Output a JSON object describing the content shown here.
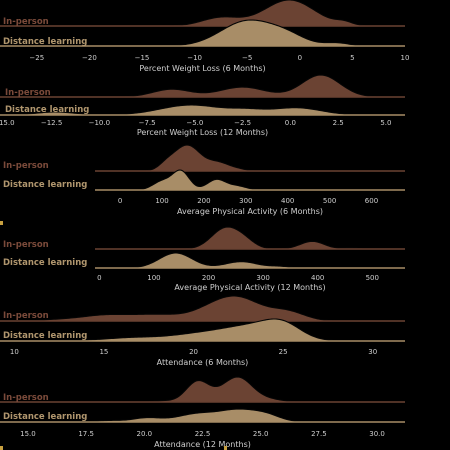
{
  "colors": {
    "background": "#000000",
    "in_person": "#6b4333",
    "in_person_label": "#7a4a3a",
    "distance": "#a88d67",
    "distance_label": "#b0966e",
    "outline": "#050505",
    "text": "#cfcfcf",
    "accent": "#c8a040"
  },
  "chart_data": [
    {
      "type": "area",
      "xlabel": "Percent Weight Loss (6 Months)",
      "xlim": [
        -28.5,
        10
      ],
      "ticks": [
        -25,
        -20,
        -15,
        -10,
        -5,
        0,
        5,
        10
      ],
      "tick_labels": [
        "−25",
        "−20",
        "−15",
        "−10",
        "−5",
        "0",
        "5",
        "10"
      ],
      "series": [
        {
          "name": "In-person",
          "peaks": [
            [
              -7.5,
              1.8,
              0.32
            ],
            [
              -1,
              2.4,
              1.0
            ],
            [
              4.2,
              0.8,
              0.12
            ]
          ]
        },
        {
          "name": "Distance learning",
          "peaks": [
            [
              -5,
              2.5,
              1.0
            ],
            [
              -1.2,
              1.8,
              0.35
            ],
            [
              3.5,
              1.2,
              0.12
            ]
          ]
        }
      ]
    },
    {
      "type": "area",
      "xlabel": "Percent Weight Loss (12 Months)",
      "xlim": [
        -15.2,
        6
      ],
      "ticks": [
        -15,
        -12.5,
        -10,
        -7.5,
        -5,
        -2.5,
        0,
        2.5,
        5
      ],
      "tick_labels": [
        "−15.0",
        "−12.5",
        "−10.0",
        "−7.5",
        "−5.0",
        "−2.5",
        "0.0",
        "2.5",
        "5.0"
      ],
      "series": [
        {
          "name": "In-person",
          "peaks": [
            [
              -6.2,
              1.0,
              0.35
            ],
            [
              -2.5,
              1.2,
              0.45
            ],
            [
              1.6,
              1.0,
              1.0
            ]
          ]
        },
        {
          "name": "Distance learning",
          "peaks": [
            [
              -12.3,
              1.0,
              0.3
            ],
            [
              -5.2,
              1.6,
              1.0
            ],
            [
              -2.3,
              0.9,
              0.38
            ],
            [
              0.3,
              1.3,
              0.72
            ]
          ]
        }
      ]
    },
    {
      "type": "area",
      "xlabel": "Average Physical Activity (6 Months)",
      "xlim": [
        -60,
        680
      ],
      "ticks": [
        0,
        100,
        200,
        300,
        400,
        500,
        600
      ],
      "tick_labels": [
        "0",
        "100",
        "200",
        "300",
        "400",
        "500",
        "600"
      ],
      "series": [
        {
          "name": "In-person",
          "peaks": [
            [
              160,
              32,
              1.0
            ],
            [
              235,
              25,
              0.3
            ],
            [
              110,
              18,
              0.18
            ],
            [
              280,
              20,
              0.07
            ]
          ]
        },
        {
          "name": "Distance learning",
          "peaks": [
            [
              100,
              22,
              0.45
            ],
            [
              145,
              20,
              1.0
            ],
            [
              230,
              22,
              0.55
            ],
            [
              280,
              22,
              0.2
            ]
          ]
        }
      ]
    },
    {
      "type": "area",
      "xlabel": "Average Physical Activity (12 Months)",
      "xlim": [
        -8,
        560
      ],
      "ticks": [
        0,
        100,
        200,
        300,
        400,
        500
      ],
      "tick_labels": [
        "0",
        "100",
        "200",
        "300",
        "400",
        "500"
      ],
      "series": [
        {
          "name": "In-person",
          "peaks": [
            [
              230,
              25,
              1.0
            ],
            [
              265,
              20,
              0.35
            ],
            [
              390,
              22,
              0.38
            ],
            [
              460,
              15,
              0.05
            ]
          ]
        },
        {
          "name": "Distance learning",
          "peaks": [
            [
              140,
              30,
              1.0
            ],
            [
              260,
              30,
              0.42
            ],
            [
              330,
              18,
              0.1
            ],
            [
              410,
              25,
              0.05
            ]
          ]
        }
      ]
    },
    {
      "type": "area",
      "xlabel": "Attendance (6 Months)",
      "xlim": [
        9.2,
        31.8
      ],
      "ticks": [
        10,
        15,
        20,
        25,
        30
      ],
      "tick_labels": [
        "10",
        "15",
        "20",
        "25",
        "30"
      ],
      "series": [
        {
          "name": "In-person",
          "peaks": [
            [
              15,
              1.3,
              0.26
            ],
            [
              18,
              1.5,
              0.3
            ],
            [
              21,
              1.1,
              0.45
            ],
            [
              22.6,
              1.2,
              1.0
            ],
            [
              25.2,
              1.0,
              0.45
            ],
            [
              12.5,
              1.0,
              0.06
            ]
          ]
        },
        {
          "name": "Distance learning",
          "peaks": [
            [
              12.5,
              1.2,
              0.05
            ],
            [
              16.5,
              1.5,
              0.16
            ],
            [
              20.5,
              1.8,
              0.38
            ],
            [
              23.5,
              1.6,
              0.72
            ],
            [
              25,
              1.0,
              0.62
            ]
          ]
        }
      ]
    },
    {
      "type": "area",
      "xlabel": "Attendance (12 Months)",
      "xlim": [
        13.8,
        31.2
      ],
      "ticks": [
        15,
        17.5,
        20,
        22.5,
        25,
        27.5,
        30
      ],
      "tick_labels": [
        "15.0",
        "17.5",
        "20.0",
        "22.5",
        "25.0",
        "27.5",
        "30.0"
      ],
      "series": [
        {
          "name": "In-person",
          "peaks": [
            [
              22.3,
              0.5,
              0.92
            ],
            [
              23.8,
              0.6,
              0.82
            ],
            [
              24.3,
              0.5,
              0.38
            ],
            [
              25.2,
              0.6,
              0.15
            ],
            [
              20.8,
              0.4,
              0.05
            ]
          ]
        },
        {
          "name": "Distance learning",
          "peaks": [
            [
              20.1,
              0.6,
              0.22
            ],
            [
              22.3,
              0.9,
              0.45
            ],
            [
              24.1,
              0.8,
              0.62
            ],
            [
              25.3,
              0.6,
              0.3
            ],
            [
              18.5,
              0.6,
              0.08
            ]
          ]
        }
      ]
    }
  ]
}
